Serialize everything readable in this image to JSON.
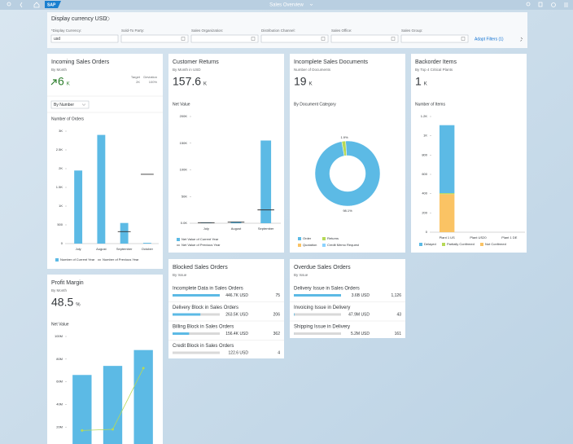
{
  "shell": {
    "title": "Sales Overview"
  },
  "filter_bar": {
    "title": "Display currency USD",
    "fields": [
      {
        "label": "*Display Currency:",
        "value": "usd"
      },
      {
        "label": "Sold-To Party:"
      },
      {
        "label": "Sales Organization:"
      },
      {
        "label": "Distribution Channel:"
      },
      {
        "label": "Sales Office:"
      },
      {
        "label": "Sales Group:"
      }
    ],
    "adapt_filters": "Adapt Filters (1)"
  },
  "cards": [
    {
      "title": "Incoming Sales Orders",
      "subtitle": "By Month",
      "kpi": "6",
      "unit": "K",
      "kpi_color": "#2b7d2b",
      "target_label": "Target",
      "target": "2K",
      "deviation_label": "Deviation",
      "deviation": "100%",
      "selector": "By Number",
      "chart_data": {
        "type": "bar",
        "y_label": "Number of Orders",
        "categories": [
          "July",
          "August",
          "September",
          "October"
        ],
        "series": [
          {
            "name": "Number of Current Year",
            "color": "#5cbae5",
            "style": "bar",
            "values": [
              1950,
              2900,
              550,
              20
            ]
          },
          {
            "name": "Number of Previous Year",
            "color": "#333333",
            "style": "dash",
            "values": [
              null,
              null,
              320,
              1850
            ]
          }
        ],
        "ylim": [
          0,
          3000
        ],
        "yticks": [
          0,
          500,
          {
            "value": 1000,
            "label": "1K"
          },
          {
            "value": 1500,
            "label": "1.5K"
          },
          {
            "value": 2000,
            "label": "2K"
          },
          {
            "value": 2500,
            "label": "2.5K"
          },
          {
            "value": 3000,
            "label": "3K"
          }
        ]
      }
    },
    {
      "title": "Customer Returns",
      "subtitle": "By Month in USD",
      "kpi": "157.6",
      "unit": "K",
      "chart_data": {
        "type": "bar",
        "y_label": "Net Value",
        "categories": [
          "July",
          "August",
          "September"
        ],
        "series": [
          {
            "name": "Net Value of Current Year",
            "color": "#5cbae5",
            "style": "bar",
            "values": [
              1500,
              3000,
              155000
            ]
          },
          {
            "name": "Net Value of Previous Year",
            "color": "#333333",
            "style": "dash",
            "values": [
              1000,
              2000,
              25000
            ]
          }
        ],
        "ylim": [
          0,
          200000
        ],
        "yticks": [
          {
            "value": 0,
            "label": "0.0K"
          },
          {
            "value": 50000,
            "label": "50K"
          },
          {
            "value": 100000,
            "label": "100K"
          },
          {
            "value": 150000,
            "label": "150K"
          },
          {
            "value": 200000,
            "label": "200K"
          }
        ]
      }
    },
    {
      "title": "Incomplete Sales Documents",
      "subtitle": "Number of Documents",
      "kpi": "19",
      "unit": "K",
      "chart_data": {
        "type": "donut",
        "y_label": "By Document Category",
        "series": [
          {
            "name": "Order",
            "color": "#5cbae5",
            "values": [
              98.1
            ],
            "value_labels": [
              "98.1%"
            ]
          },
          {
            "name": "Returns",
            "color": "#b6d957",
            "values": [
              1.9
            ],
            "value_labels": [
              "1.9%"
            ]
          },
          {
            "name": "Quotation",
            "color": "#fac364",
            "values": [
              0
            ]
          },
          {
            "name": "Credit Memo Request",
            "color": "#8cd3ff",
            "values": [
              0
            ]
          }
        ]
      }
    },
    {
      "title": "Backorder Items",
      "subtitle": "By Top 4 Critical Plants",
      "kpi": "1",
      "unit": "K",
      "chart_data": {
        "type": "stacked_bar",
        "y_label": "Number of Items",
        "categories": [
          "Plant 1 US",
          "Plant US20",
          "Plant 1 DE"
        ],
        "series": [
          {
            "name": "Delayed",
            "color": "#5cbae5",
            "values": [
              705,
              0,
              0
            ]
          },
          {
            "name": "Partially Confirmed",
            "color": "#b6d957",
            "values": [
              10,
              0,
              0
            ]
          },
          {
            "name": "Not Confirmed",
            "color": "#fac364",
            "values": [
              395,
              0,
              0
            ]
          }
        ],
        "stack_order": [
          2,
          1,
          0
        ],
        "ylim": [
          0,
          1200
        ],
        "yticks": [
          0,
          200,
          400,
          600,
          800,
          {
            "value": 1000,
            "label": "1K"
          },
          {
            "value": 1200,
            "label": "1.2K"
          }
        ]
      }
    },
    {
      "title": "Profit Margin",
      "subtitle": "By Month",
      "kpi": "48.5",
      "unit": "%",
      "chart_data": {
        "type": "combo",
        "y_label": "Net Value",
        "series": [
          {
            "color": "#5cbae5",
            "style": "bar",
            "values": [
              66000000,
              74000000,
              88000000
            ]
          },
          {
            "color": "#b6d957",
            "style": "line",
            "values": [
              17000000,
              18000000,
              72000000
            ]
          }
        ],
        "ylim": [
          0,
          100000000
        ],
        "yticks": [
          {
            "value": 20000000,
            "label": "20M"
          },
          {
            "value": 40000000,
            "label": "40M"
          },
          {
            "value": 60000000,
            "label": "60M"
          },
          {
            "value": 80000000,
            "label": "80M"
          },
          {
            "value": 100000000,
            "label": "100M"
          }
        ]
      }
    },
    {
      "title": "Blocked Sales Orders",
      "subtitle": "By Issue",
      "rows": [
        {
          "label": "Incomplete Data in Sales Orders",
          "amount": {
            "value": 446700,
            "label": "446.7K USD"
          },
          "count": "75"
        },
        {
          "label": "Delivery Block in Sales Orders",
          "amount": {
            "value": 263500,
            "label": "263.5K USD"
          },
          "count": "206"
        },
        {
          "label": "Billing Block in Sales Orders",
          "amount": {
            "value": 156400,
            "label": "156.4K USD"
          },
          "count": "362"
        },
        {
          "label": "Credit Block in Sales Orders",
          "amount": {
            "value": 122.6,
            "label": "122.6 USD"
          },
          "count": "4"
        }
      ]
    },
    {
      "title": "Overdue Sales Orders",
      "subtitle": "By Issue",
      "rows": [
        {
          "label": "Delivery Issue in Sales Orders",
          "amount": {
            "value": 3600000000,
            "label": "3.6B USD"
          },
          "count": "1,126"
        },
        {
          "label": "Invoicing Issue in Delivery",
          "amount": {
            "value": 47900000,
            "label": "47.9M USD"
          },
          "count": "43"
        },
        {
          "label": "Shipping Issue in Delivery",
          "amount": {
            "value": 5200000,
            "label": "5.2M USD"
          },
          "count": "161"
        }
      ]
    }
  ]
}
